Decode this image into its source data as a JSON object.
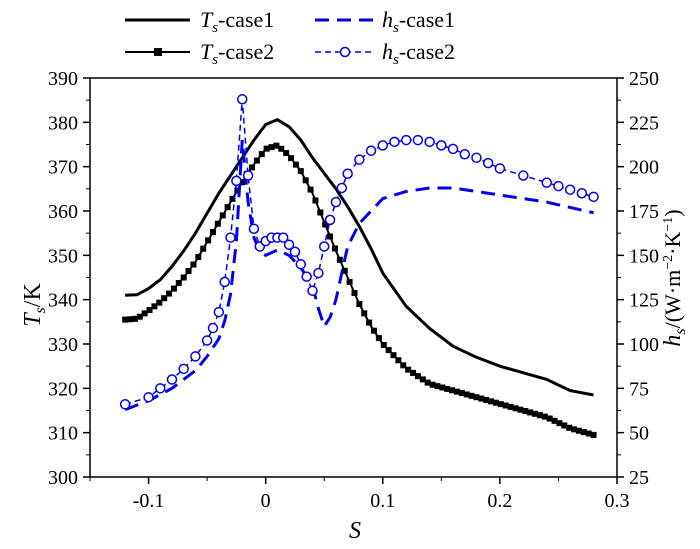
{
  "chart_data": {
    "type": "line",
    "xlabel": "S",
    "ylabel_left": {
      "symbol": "T",
      "sub": "s",
      "unit": "/K"
    },
    "ylabel_right": {
      "symbol": "h",
      "sub": "s",
      "unit_pre": "/(W·m",
      "sup1": "−2",
      "unit_mid": "·K",
      "sup2": "−1",
      "unit_post": ")"
    },
    "xlim": [
      -0.15,
      0.3
    ],
    "ylim_left": [
      300,
      390
    ],
    "ylim_right": [
      25,
      250
    ],
    "x_ticks": [
      "-0.1",
      "0",
      "0.1",
      "0.2",
      "0.3"
    ],
    "x_tick_values": [
      -0.1,
      0,
      0.1,
      0.2,
      0.3
    ],
    "y_left_ticks": [
      "300",
      "310",
      "320",
      "330",
      "340",
      "350",
      "360",
      "370",
      "380",
      "390"
    ],
    "y_left_tick_values": [
      300,
      310,
      320,
      330,
      340,
      350,
      360,
      370,
      380,
      390
    ],
    "y_right_ticks": [
      "25",
      "50",
      "75",
      "100",
      "125",
      "150",
      "175",
      "200",
      "225",
      "250"
    ],
    "y_right_tick_values": [
      25,
      50,
      75,
      100,
      125,
      150,
      175,
      200,
      225,
      250
    ],
    "series": [
      {
        "name": "Ts-case1",
        "label_sym": "T",
        "label_sub": "s",
        "label_rest": "-case1",
        "axis": "left",
        "style": "solid",
        "marker": "none",
        "color": "#000000",
        "x": [
          -0.12,
          -0.11,
          -0.1,
          -0.09,
          -0.08,
          -0.07,
          -0.06,
          -0.05,
          -0.04,
          -0.03,
          -0.02,
          -0.01,
          0.0,
          0.01,
          0.02,
          0.03,
          0.04,
          0.05,
          0.06,
          0.07,
          0.08,
          0.09,
          0.1,
          0.12,
          0.14,
          0.16,
          0.18,
          0.2,
          0.22,
          0.24,
          0.26,
          0.28
        ],
        "y": [
          341,
          341.1,
          342.5,
          344.5,
          347.5,
          351,
          355,
          359.5,
          364,
          368,
          372,
          376,
          379.5,
          380.6,
          379,
          376,
          372,
          368.5,
          365,
          361,
          356.5,
          351.5,
          346,
          338.5,
          333.5,
          329.5,
          327,
          325,
          323.5,
          322,
          319.5,
          318.5
        ]
      },
      {
        "name": "Ts-case2",
        "label_sym": "T",
        "label_sub": "s",
        "label_rest": "-case2",
        "axis": "left",
        "style": "solid",
        "marker": "square",
        "color": "#000000",
        "x": [
          -0.12,
          -0.11,
          -0.1,
          -0.09,
          -0.08,
          -0.07,
          -0.06,
          -0.05,
          -0.04,
          -0.03,
          -0.02,
          -0.01,
          0.0,
          0.01,
          0.02,
          0.03,
          0.04,
          0.05,
          0.06,
          0.07,
          0.08,
          0.09,
          0.1,
          0.12,
          0.14,
          0.16,
          0.18,
          0.2,
          0.22,
          0.24,
          0.26,
          0.28
        ],
        "y": [
          335.5,
          335.7,
          337.5,
          339.5,
          342,
          345,
          348.5,
          353,
          357.5,
          362,
          366.5,
          370.5,
          374,
          374.8,
          372.5,
          369,
          364,
          357.5,
          351,
          345,
          339,
          334,
          330,
          324.5,
          321,
          319.5,
          318,
          316.5,
          315,
          313.5,
          311,
          309.5
        ]
      },
      {
        "name": "hs-case1",
        "label_sym": "h",
        "label_sub": "s",
        "label_rest": "-case1",
        "axis": "right",
        "style": "dashed",
        "marker": "none",
        "color": "#0000EE",
        "x": [
          -0.12,
          -0.1,
          -0.08,
          -0.06,
          -0.05,
          -0.04,
          -0.035,
          -0.03,
          -0.025,
          -0.02,
          -0.015,
          -0.01,
          -0.005,
          0.0,
          0.01,
          0.02,
          0.03,
          0.04,
          0.045,
          0.05,
          0.055,
          0.06,
          0.07,
          0.08,
          0.09,
          0.1,
          0.12,
          0.14,
          0.16,
          0.18,
          0.2,
          0.22,
          0.24,
          0.26,
          0.28
        ],
        "y": [
          63,
          68,
          75,
          85,
          93,
          103,
          113,
          128,
          158,
          215,
          180,
          160,
          152,
          150,
          153,
          150,
          143,
          133,
          120,
          110,
          115,
          125,
          155,
          168,
          175,
          182,
          186,
          188,
          188,
          186,
          184,
          182,
          180,
          177,
          174
        ]
      },
      {
        "name": "hs-case2",
        "label_sym": "h",
        "label_sub": "s",
        "label_rest": "-case2",
        "axis": "right",
        "style": "dashed",
        "marker": "circle",
        "color": "#0000EE",
        "x": [
          -0.12,
          -0.1,
          -0.09,
          -0.08,
          -0.07,
          -0.06,
          -0.05,
          -0.045,
          -0.04,
          -0.035,
          -0.03,
          -0.025,
          -0.02,
          -0.015,
          -0.01,
          -0.005,
          0.0,
          0.005,
          0.01,
          0.015,
          0.02,
          0.025,
          0.03,
          0.035,
          0.04,
          0.045,
          0.05,
          0.055,
          0.06,
          0.065,
          0.07,
          0.08,
          0.09,
          0.1,
          0.11,
          0.12,
          0.13,
          0.14,
          0.15,
          0.16,
          0.17,
          0.18,
          0.19,
          0.2,
          0.22,
          0.24,
          0.25,
          0.26,
          0.27,
          0.28
        ],
        "y": [
          66,
          70,
          75,
          80,
          86,
          93,
          102,
          109,
          118,
          135,
          160,
          192,
          238,
          195,
          165,
          155,
          158,
          160,
          160,
          160,
          156,
          152,
          145,
          138,
          130,
          140,
          155,
          170,
          180,
          188,
          196,
          204,
          209,
          212,
          214,
          215,
          215,
          214,
          212,
          210,
          207,
          205,
          202,
          199,
          195,
          191,
          189,
          187,
          185,
          183
        ]
      }
    ]
  }
}
